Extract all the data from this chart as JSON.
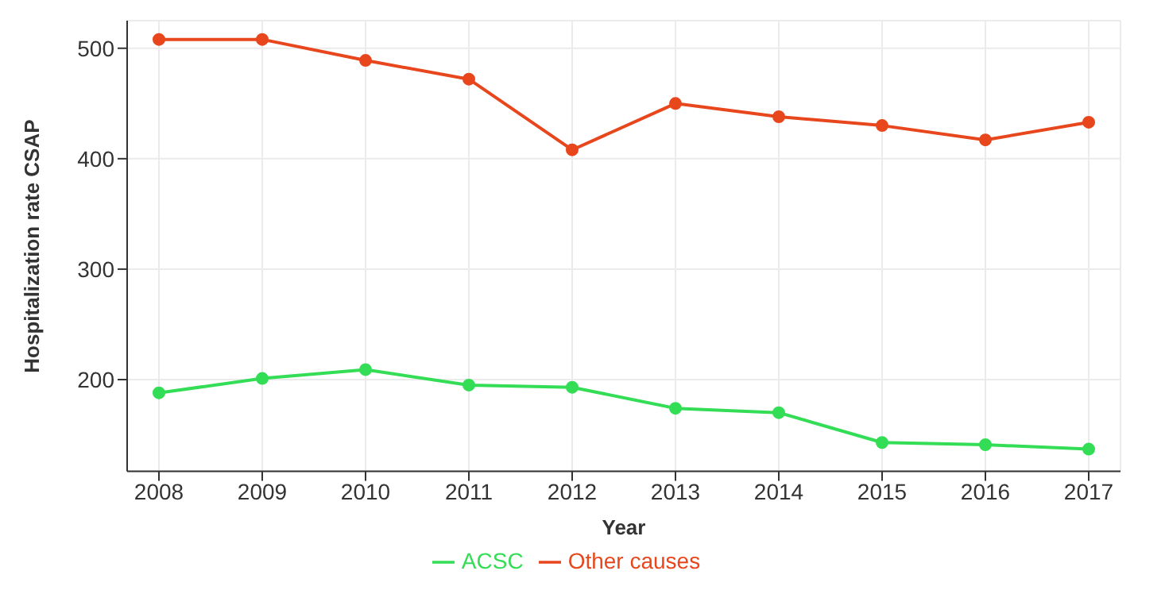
{
  "chart_data": {
    "type": "line",
    "xlabel": "Year",
    "ylabel": "Hospitalization rate CSAP",
    "categories": [
      "2008",
      "2009",
      "2010",
      "2011",
      "2012",
      "2013",
      "2014",
      "2015",
      "2016",
      "2017"
    ],
    "series": [
      {
        "name": "ACSC",
        "color": "#33dd55",
        "values": [
          188,
          201,
          209,
          195,
          193,
          174,
          170,
          143,
          141,
          137
        ]
      },
      {
        "name": "Other causes",
        "color": "#e8461c",
        "values": [
          508,
          508,
          489,
          472,
          408,
          450,
          438,
          430,
          417,
          433
        ]
      }
    ],
    "ylim": [
      117,
      525
    ],
    "yticks": [
      200,
      300,
      400,
      500
    ],
    "grid": true,
    "legend": "bottom",
    "marker": "circle",
    "line_style": "solid"
  }
}
